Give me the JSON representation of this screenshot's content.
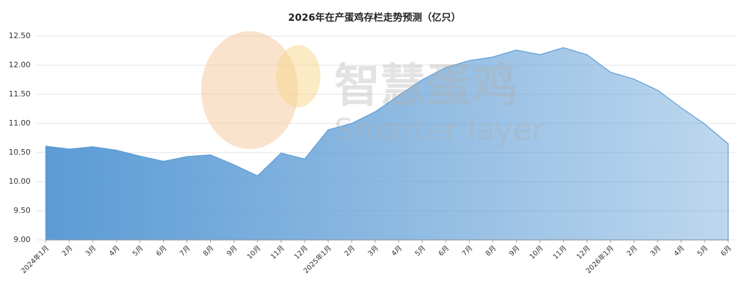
{
  "chart_data": {
    "type": "area",
    "title": "2026年在产蛋鸡存栏走势预测（亿只）",
    "categories": [
      "2024年1月",
      "2月",
      "3月",
      "4月",
      "5月",
      "6月",
      "7月",
      "8月",
      "9月",
      "10月",
      "11月",
      "12月",
      "2025年1月",
      "2月",
      "3月",
      "4月",
      "5月",
      "6月",
      "7月",
      "8月",
      "9月",
      "10月",
      "11月",
      "12月",
      "2026年1月",
      "2月",
      "3月",
      "4月",
      "5月",
      "6月"
    ],
    "values": [
      10.61,
      10.56,
      10.6,
      10.54,
      10.44,
      10.35,
      10.43,
      10.46,
      10.29,
      10.1,
      10.49,
      10.39,
      10.89,
      11.0,
      11.2,
      11.48,
      11.75,
      11.96,
      12.08,
      12.14,
      12.26,
      12.18,
      12.3,
      12.18,
      11.88,
      11.76,
      11.57,
      11.27,
      10.99,
      10.65
    ],
    "color": "#5b9bd5",
    "ylim": [
      9,
      12.5
    ],
    "yticks": [
      {
        "value": 9,
        "label": "9.00"
      },
      {
        "value": 9.5,
        "label": "9.50"
      },
      {
        "value": 10,
        "label": "10.00"
      },
      {
        "value": 10.5,
        "label": "10.50"
      },
      {
        "value": 11,
        "label": "11.00"
      },
      {
        "value": 11.5,
        "label": "11.50"
      },
      {
        "value": 12,
        "label": "12.00"
      },
      {
        "value": 12.5,
        "label": "12.50"
      }
    ],
    "grid": true,
    "watermark": [
      "智慧蛋鸡",
      "Smarter layer"
    ]
  }
}
